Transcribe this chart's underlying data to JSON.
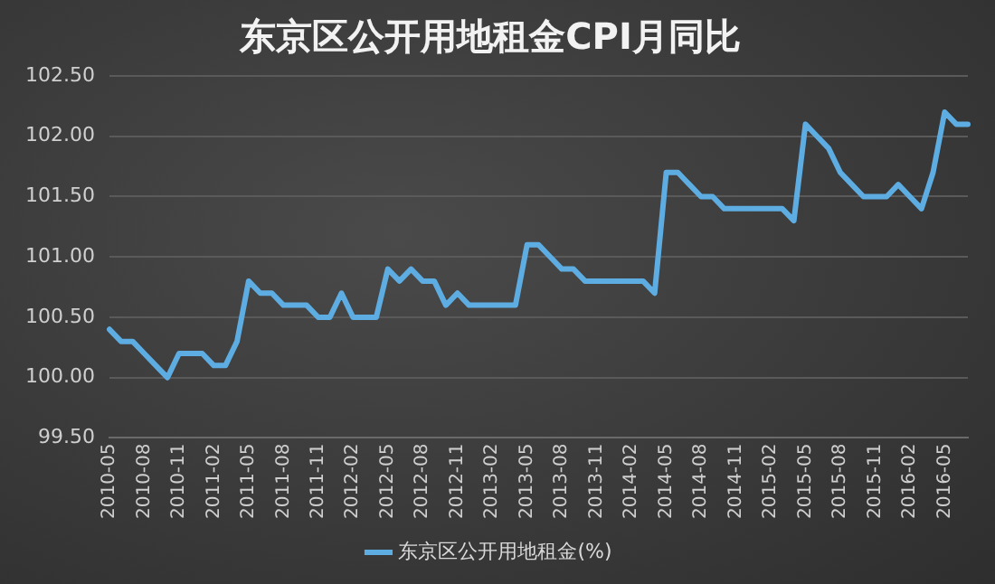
{
  "chart_data": {
    "type": "line",
    "title": "东京区公开用地租金CPI月同比",
    "categories": [
      "2010-05",
      null,
      null,
      "2010-08",
      null,
      null,
      "2010-11",
      null,
      null,
      "2011-02",
      null,
      null,
      "2011-05",
      null,
      null,
      "2011-08",
      null,
      null,
      "2011-11",
      null,
      null,
      "2012-02",
      null,
      null,
      "2012-05",
      null,
      null,
      "2012-08",
      null,
      null,
      "2012-11",
      null,
      null,
      "2013-02",
      null,
      null,
      "2013-05",
      null,
      null,
      "2013-08",
      null,
      null,
      "2013-11",
      null,
      null,
      "2014-02",
      null,
      null,
      "2014-05",
      null,
      null,
      "2014-08",
      null,
      null,
      "2014-11",
      null,
      null,
      "2015-02",
      null,
      null,
      "2015-05",
      null,
      null,
      "2015-08",
      null,
      null,
      "2015-11",
      null,
      null,
      "2016-02",
      null,
      null,
      "2016-05",
      null,
      null
    ],
    "series": [
      {
        "name": "东京区公开用地租金(%)",
        "color": "#5dade2",
        "values": [
          100.4,
          100.3,
          100.3,
          100.2,
          100.1,
          100.0,
          100.2,
          100.2,
          100.2,
          100.1,
          100.1,
          100.3,
          100.8,
          100.7,
          100.7,
          100.6,
          100.6,
          100.6,
          100.5,
          100.5,
          100.7,
          100.5,
          100.5,
          100.5,
          100.9,
          100.8,
          100.9,
          100.8,
          100.8,
          100.6,
          100.7,
          100.6,
          100.6,
          100.6,
          100.6,
          100.6,
          101.1,
          101.1,
          101.0,
          100.9,
          100.9,
          100.8,
          100.8,
          100.8,
          100.8,
          100.8,
          100.8,
          100.7,
          101.7,
          101.7,
          101.6,
          101.5,
          101.5,
          101.4,
          101.4,
          101.4,
          101.4,
          101.4,
          101.4,
          101.3,
          102.1,
          102.0,
          101.9,
          101.7,
          101.6,
          101.5,
          101.5,
          101.5,
          101.6,
          101.5,
          101.4,
          101.7,
          102.2,
          102.1,
          102.1
        ]
      }
    ],
    "ylim": [
      99.5,
      102.5
    ],
    "yticks": [
      {
        "value": 99.5,
        "label": "99.50"
      },
      {
        "value": 100,
        "label": "100.00"
      },
      {
        "value": 100.5,
        "label": "100.50"
      },
      {
        "value": 101,
        "label": "101.00"
      },
      {
        "value": 101.5,
        "label": "101.50"
      },
      {
        "value": 102,
        "label": "102.00"
      },
      {
        "value": 102.5,
        "label": "102.50"
      }
    ],
    "grid": "y",
    "legend": "bottom",
    "marker": "none",
    "line_style": "solid"
  }
}
